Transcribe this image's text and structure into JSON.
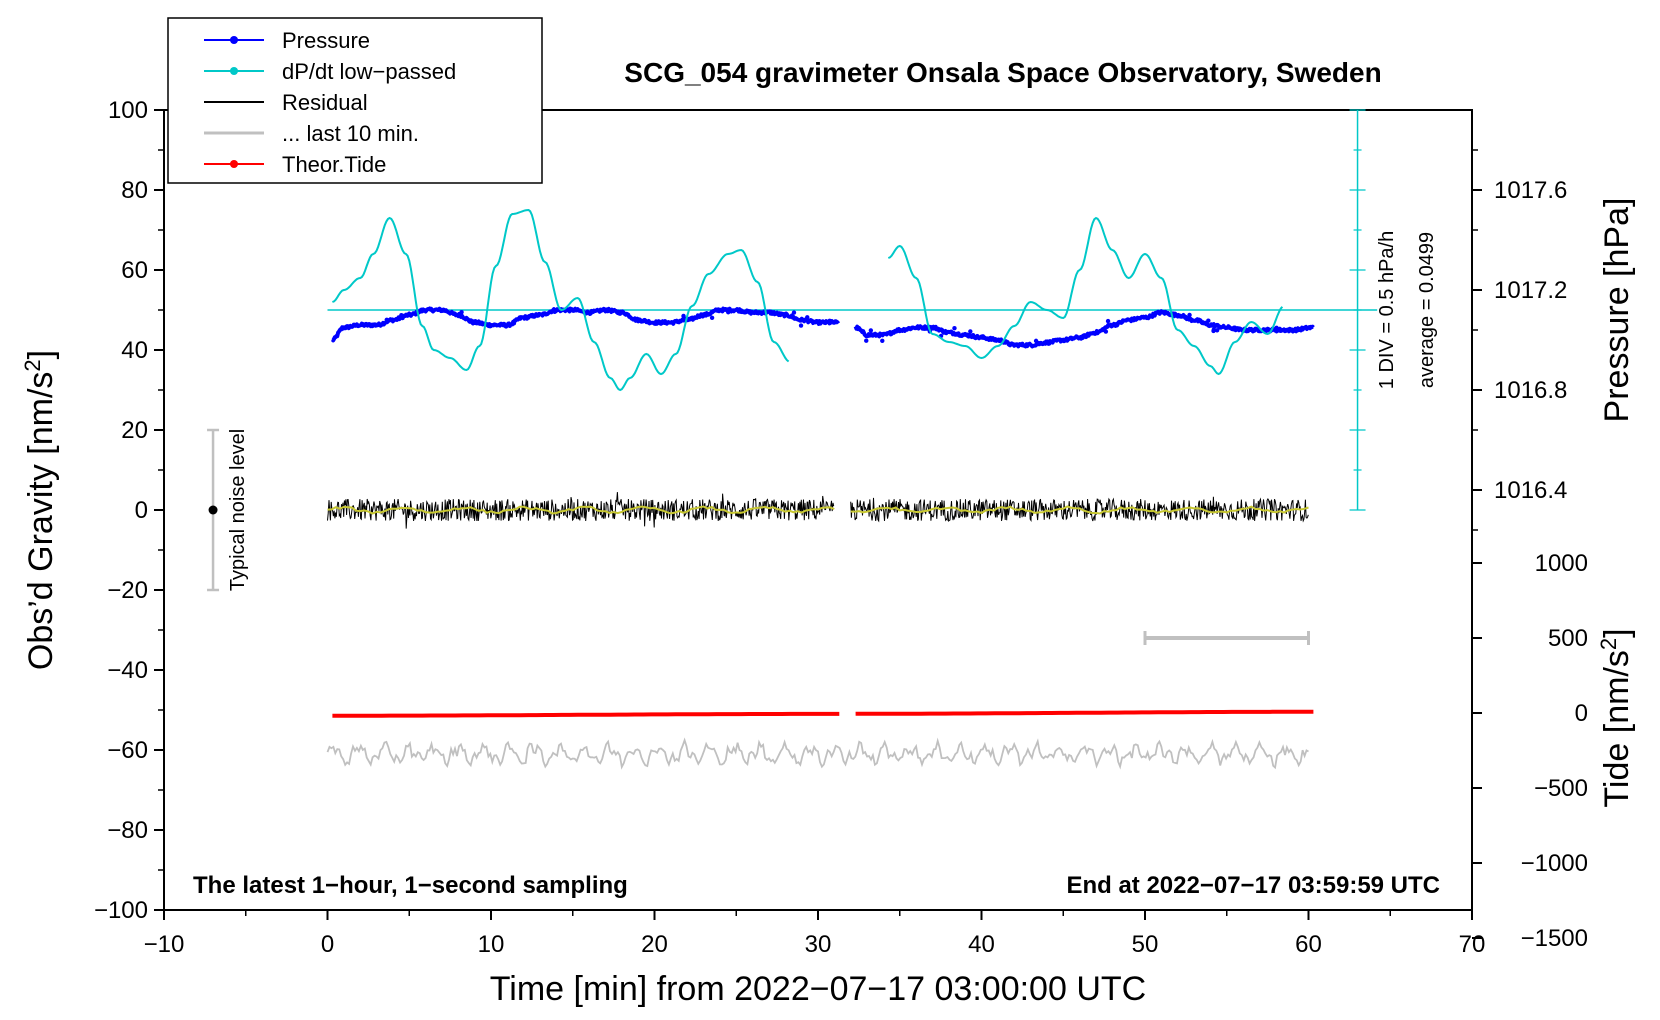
{
  "chart_data": {
    "type": "line",
    "title": "SCG_054 gravimeter Onsala Space Observatory, Sweden",
    "xlabel": "Time [min] from 2022−07−17 03:00:00 UTC",
    "ylabel_left": "Obs’d Gravity [nm/s",
    "ylabel_left_sup": "2",
    "ylabel_left_end": "]",
    "ylabel_right_pressure": "Pressure [hPa]",
    "ylabel_right_tide": "Tide [nm/s",
    "ylabel_right_tide_sup": "2",
    "ylabel_right_tide_end": "]",
    "xlim": [
      -10,
      70
    ],
    "ylim": [
      -100,
      100
    ],
    "x_ticks": [
      "−10",
      "0",
      "10",
      "20",
      "30",
      "40",
      "50",
      "60",
      "70"
    ],
    "y_ticks": [
      "100",
      "80",
      "60",
      "40",
      "20",
      "0",
      "−20",
      "−40",
      "−60",
      "−80",
      "−100"
    ],
    "pressure_ticks": [
      "1017.6",
      "1017.2",
      "1016.8",
      "1016.4"
    ],
    "pressure_tick_values": [
      1017.6,
      1017.2,
      1016.8,
      1016.4
    ],
    "pressure_axis_range": [
      1016.0,
      1018.0
    ],
    "tide_ticks": [
      "1000",
      "500",
      "0",
      "−500",
      "−1000",
      "−1500"
    ],
    "tide_tick_values": [
      1000,
      500,
      0,
      -500,
      -1000,
      -1500
    ],
    "tide_axis_range": [
      -1500,
      1000
    ],
    "legend": [
      {
        "label": "Pressure",
        "color": "#0000ff",
        "marker": true
      },
      {
        "label": "dP/dt low−passed",
        "color": "#00c8c8",
        "marker": true
      },
      {
        "label": "Residual",
        "color": "#000000",
        "marker": false
      },
      {
        "label": "... last 10 min.",
        "color": "#c0c0c0",
        "marker": false
      },
      {
        "label": "Theor.Tide",
        "color": "#ff0000",
        "marker": true
      }
    ],
    "annotations": {
      "bottom_left": "The latest 1−hour, 1−second sampling",
      "bottom_right": "End at 2022−07−17 03:59:59 UTC",
      "noise": "Typical noise level",
      "div": "1 DIV = 0.5 hPa/h",
      "average": "average = 0.0499"
    },
    "noise_bar": {
      "x": -7,
      "center": 0,
      "low": -20,
      "high": 20
    },
    "dpdt_zero_level": 50,
    "series": [
      {
        "name": "Pressure",
        "color": "#0000ff",
        "segments": [
          {
            "x": [
              0.3,
              1,
              2,
              3,
              4,
              5,
              6,
              7,
              8,
              9,
              10,
              11,
              12,
              13,
              14,
              15,
              16,
              17,
              18,
              19,
              20,
              21,
              22,
              23,
              24,
              25,
              26,
              27,
              28,
              29,
              30,
              31.3
            ],
            "y": [
              1017.0,
              1017.05,
              1017.06,
              1017.06,
              1017.08,
              1017.1,
              1017.12,
              1017.12,
              1017.1,
              1017.07,
              1017.06,
              1017.06,
              1017.09,
              1017.1,
              1017.12,
              1017.12,
              1017.11,
              1017.12,
              1017.11,
              1017.08,
              1017.07,
              1017.07,
              1017.08,
              1017.1,
              1017.12,
              1017.12,
              1017.11,
              1017.11,
              1017.1,
              1017.08,
              1017.07,
              1017.07
            ]
          },
          {
            "x": [
              32.3,
              33,
              34,
              35,
              36,
              37,
              38,
              39,
              40,
              41,
              42,
              43,
              44,
              45,
              46,
              47,
              48,
              49,
              50,
              51,
              52,
              53,
              54,
              55,
              56,
              57,
              58,
              59,
              60.3
            ],
            "y": [
              1017.05,
              1017.02,
              1017.02,
              1017.04,
              1017.05,
              1017.05,
              1017.03,
              1017.02,
              1017.01,
              1017.0,
              1016.98,
              1016.98,
              1016.99,
              1017.0,
              1017.01,
              1017.03,
              1017.06,
              1017.08,
              1017.09,
              1017.11,
              1017.1,
              1017.08,
              1017.06,
              1017.05,
              1017.04,
              1017.04,
              1017.04,
              1017.04,
              1017.05
            ]
          }
        ]
      },
      {
        "name": "dP/dt low-passed",
        "color": "#00c8c8",
        "segments": [
          {
            "x": [
              0.3,
              1,
              2,
              2.8,
              3.8,
              4.8,
              5.8,
              6.5,
              7.5,
              8.5,
              9.3,
              10.3,
              11.3,
              12.3,
              13.3,
              14.3,
              15.3,
              16.3,
              17.3,
              17.9,
              18.5,
              19.5,
              20.4,
              21.3,
              22.3,
              23.3,
              24.5,
              25.3,
              26.3,
              27.3,
              28.3
            ],
            "y": [
              52,
              55,
              58,
              64,
              73,
              64,
              46,
              40,
              38,
              35,
              41,
              61,
              74,
              75,
              62,
              50,
              53,
              42,
              33,
              30,
              33,
              39,
              34,
              39,
              51,
              59,
              64,
              65,
              57,
              42,
              37
            ]
          },
          {
            "x": [
              34.3,
              35,
              36,
              37,
              38,
              39,
              40,
              41,
              42,
              43,
              44,
              45,
              46,
              47,
              48,
              49,
              50,
              51,
              52,
              53,
              54,
              54.5,
              55.5,
              56.5,
              57.5,
              58.5
            ],
            "y": [
              63,
              66,
              58,
              44,
              42,
              41,
              38,
              41,
              46,
              52,
              50,
              48,
              60,
              73,
              65,
              58,
              64,
              58,
              45,
              41,
              36,
              34,
              42,
              47,
              44,
              51
            ]
          }
        ]
      },
      {
        "name": "Residual",
        "color": "#000000",
        "segments": [
          {
            "x": [
              0,
              31
            ],
            "y": [
              0,
              0
            ]
          },
          {
            "x": [
              32,
              60
            ],
            "y": [
              0,
              0
            ]
          }
        ]
      },
      {
        "name": "Theor.Tide",
        "color": "#ff0000",
        "segments": [
          {
            "x": [
              0.3,
              31.3
            ],
            "y": [
              -18,
              -6
            ]
          },
          {
            "x": [
              32.3,
              60.3
            ],
            "y": [
              -5,
              8
            ]
          }
        ]
      },
      {
        "name": "... last 10 min.",
        "color": "#c0c0c0",
        "segments": [
          {
            "x": [
              0,
              60
            ],
            "y": [
              -61,
              -61
            ]
          }
        ]
      }
    ],
    "last_10min_bar": {
      "x_start": 50,
      "x_end": 60,
      "tide_value": 500
    }
  }
}
